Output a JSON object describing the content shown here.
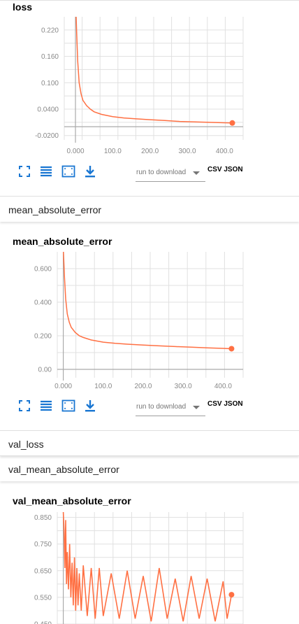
{
  "cards": [
    {
      "id": "loss",
      "title": "loss",
      "y_ticks": [
        "0.220",
        "0.160",
        "0.100",
        "0.0400",
        "-0.0200"
      ],
      "x_ticks": [
        "0.000",
        "100.0",
        "200.0",
        "300.0",
        "400.0"
      ]
    },
    {
      "id": "mae",
      "title": "mean_absolute_error",
      "y_ticks": [
        "0.600",
        "0.400",
        "0.200",
        "0.00"
      ],
      "x_ticks": [
        "0.000",
        "100.0",
        "200.0",
        "300.0",
        "400.0"
      ]
    },
    {
      "id": "val_mae",
      "title": "val_mean_absolute_error",
      "y_ticks": [
        "0.850",
        "0.750",
        "0.650",
        "0.550",
        "0.450"
      ]
    }
  ],
  "toolbar": {
    "run_placeholder": "run to download",
    "csv_label": "CSV",
    "json_label": "JSON"
  },
  "sections": {
    "mae": "mean_absolute_error",
    "val_loss": "val_loss",
    "val_mae": "val_mean_absolute_error"
  },
  "colors": {
    "series": "#ff7043",
    "grid": "#e0e0e0",
    "axis": "#aaaaaa",
    "icon": "#1976d2"
  },
  "icons": [
    "fit-screen-icon",
    "legend-lines-icon",
    "zoom-box-icon",
    "download-icon"
  ],
  "chart_data": [
    {
      "type": "line",
      "title": "loss",
      "xlabel": "",
      "ylabel": "",
      "xlim": [
        -30,
        450
      ],
      "ylim": [
        -0.03,
        0.25
      ],
      "x_ticks": [
        0,
        100,
        200,
        300,
        400
      ],
      "y_ticks": [
        0.22,
        0.16,
        0.1,
        0.04,
        -0.02
      ],
      "grid": true,
      "series": [
        {
          "x": [
            0,
            3,
            6,
            10,
            15,
            20,
            30,
            40,
            50,
            70,
            100,
            130,
            160,
            200,
            240,
            280,
            320,
            360,
            400,
            421
          ],
          "y": [
            0.3,
            0.22,
            0.15,
            0.1,
            0.075,
            0.06,
            0.048,
            0.04,
            0.034,
            0.028,
            0.023,
            0.02,
            0.018,
            0.016,
            0.014,
            0.012,
            0.011,
            0.01,
            0.009,
            0.0085
          ]
        }
      ]
    },
    {
      "type": "line",
      "title": "mean_absolute_error",
      "xlabel": "",
      "ylabel": "",
      "xlim": [
        -15,
        450
      ],
      "ylim": [
        -0.05,
        0.7
      ],
      "x_ticks": [
        0,
        100,
        200,
        300,
        400
      ],
      "y_ticks": [
        0.6,
        0.4,
        0.2,
        0.0
      ],
      "grid": true,
      "series": [
        {
          "x": [
            0,
            3,
            6,
            10,
            15,
            20,
            30,
            40,
            50,
            70,
            100,
            130,
            160,
            200,
            240,
            280,
            320,
            360,
            400,
            421
          ],
          "y": [
            0.72,
            0.55,
            0.42,
            0.33,
            0.28,
            0.25,
            0.22,
            0.2,
            0.19,
            0.175,
            0.162,
            0.155,
            0.15,
            0.145,
            0.14,
            0.136,
            0.132,
            0.128,
            0.125,
            0.123
          ]
        }
      ]
    },
    {
      "type": "line",
      "title": "val_mean_absolute_error",
      "xlabel": "",
      "ylabel": "",
      "xlim": [
        -15,
        450
      ],
      "ylim": [
        0.45,
        0.87
      ],
      "y_ticks": [
        0.85,
        0.75,
        0.65,
        0.55,
        0.45
      ],
      "grid": true,
      "series": [
        {
          "x": [
            0,
            2,
            4,
            6,
            8,
            10,
            13,
            16,
            19,
            22,
            25,
            28,
            31,
            34,
            37,
            40,
            45,
            50,
            60,
            70,
            80,
            90,
            100,
            120,
            140,
            160,
            180,
            200,
            220,
            240,
            260,
            280,
            300,
            320,
            340,
            360,
            380,
            400,
            410,
            421
          ],
          "y": [
            0.87,
            0.8,
            0.66,
            0.84,
            0.6,
            0.72,
            0.58,
            0.75,
            0.55,
            0.68,
            0.52,
            0.7,
            0.5,
            0.66,
            0.52,
            0.64,
            0.5,
            0.67,
            0.48,
            0.66,
            0.47,
            0.66,
            0.48,
            0.64,
            0.47,
            0.65,
            0.47,
            0.63,
            0.46,
            0.66,
            0.47,
            0.62,
            0.46,
            0.63,
            0.47,
            0.62,
            0.46,
            0.61,
            0.47,
            0.56
          ]
        }
      ]
    }
  ]
}
